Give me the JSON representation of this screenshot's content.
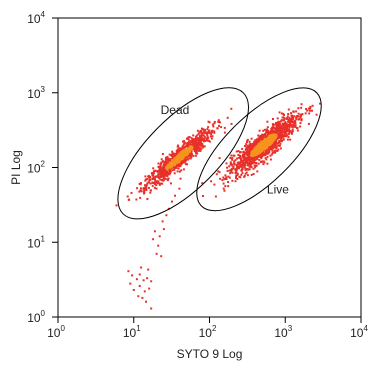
{
  "chart_data": {
    "type": "scatter",
    "title": "",
    "xlabel": "SYTO 9 Log",
    "ylabel": "PI Log",
    "x_scale": "log",
    "y_scale": "log",
    "xlim": [
      1,
      10000
    ],
    "ylim": [
      1,
      10000
    ],
    "grid": false,
    "x_ticks": [
      {
        "base": "10",
        "exp": "0",
        "value": 1
      },
      {
        "base": "10",
        "exp": "1",
        "value": 10
      },
      {
        "base": "10",
        "exp": "2",
        "value": 100
      },
      {
        "base": "10",
        "exp": "3",
        "value": 1000
      },
      {
        "base": "10",
        "exp": "4",
        "value": 10000
      }
    ],
    "y_ticks": [
      {
        "base": "10",
        "exp": "0",
        "value": 1
      },
      {
        "base": "10",
        "exp": "1",
        "value": 10
      },
      {
        "base": "10",
        "exp": "2",
        "value": 100
      },
      {
        "base": "10",
        "exp": "3",
        "value": 1000
      },
      {
        "base": "10",
        "exp": "4",
        "value": 10000
      }
    ],
    "point_color": "#e8302a",
    "dense_color": "#f7931e",
    "gates": [
      {
        "name": "Dead",
        "center": [
          45,
          155
        ],
        "major_end": [
          280,
          1000
        ],
        "minor_end": [
          16,
          220
        ],
        "label_at": [
          35,
          520
        ]
      },
      {
        "name": "Live",
        "center": [
          450,
          175
        ],
        "major_end": [
          2600,
          1000
        ],
        "minor_end": [
          300,
          450
        ],
        "label_at": [
          800,
          45
        ]
      }
    ],
    "clusters": [
      {
        "name": "Dead",
        "count": 900,
        "center": [
          40,
          135
        ],
        "spread_major": 0.3,
        "spread_minor": 0.055
      },
      {
        "name": "Live",
        "count": 1300,
        "center": [
          520,
          200
        ],
        "spread_major": 0.28,
        "spread_minor": 0.07
      }
    ],
    "outliers": [
      [
        8.5,
        4.1
      ],
      [
        9.5,
        3.6
      ],
      [
        11,
        3.2
      ],
      [
        12,
        3.7
      ],
      [
        13.5,
        3.1
      ],
      [
        15,
        3.3
      ],
      [
        17,
        3.0
      ],
      [
        10,
        2.3
      ],
      [
        12,
        2.6
      ],
      [
        14,
        2.2
      ],
      [
        16,
        2.4
      ],
      [
        11.5,
        1.9
      ],
      [
        14.5,
        1.6
      ],
      [
        17,
        1.3
      ],
      [
        13,
        1.8
      ],
      [
        9,
        2.8
      ],
      [
        15.5,
        4.3
      ],
      [
        12.5,
        4.6
      ],
      [
        21,
        9
      ],
      [
        20,
        7
      ],
      [
        22,
        12
      ],
      [
        25,
        15
      ],
      [
        24,
        19
      ],
      [
        27,
        23
      ],
      [
        29,
        28
      ],
      [
        18,
        11
      ],
      [
        23,
        6.5
      ],
      [
        32,
        35
      ],
      [
        35,
        42
      ],
      [
        40,
        52
      ],
      [
        19,
        14
      ]
    ]
  }
}
